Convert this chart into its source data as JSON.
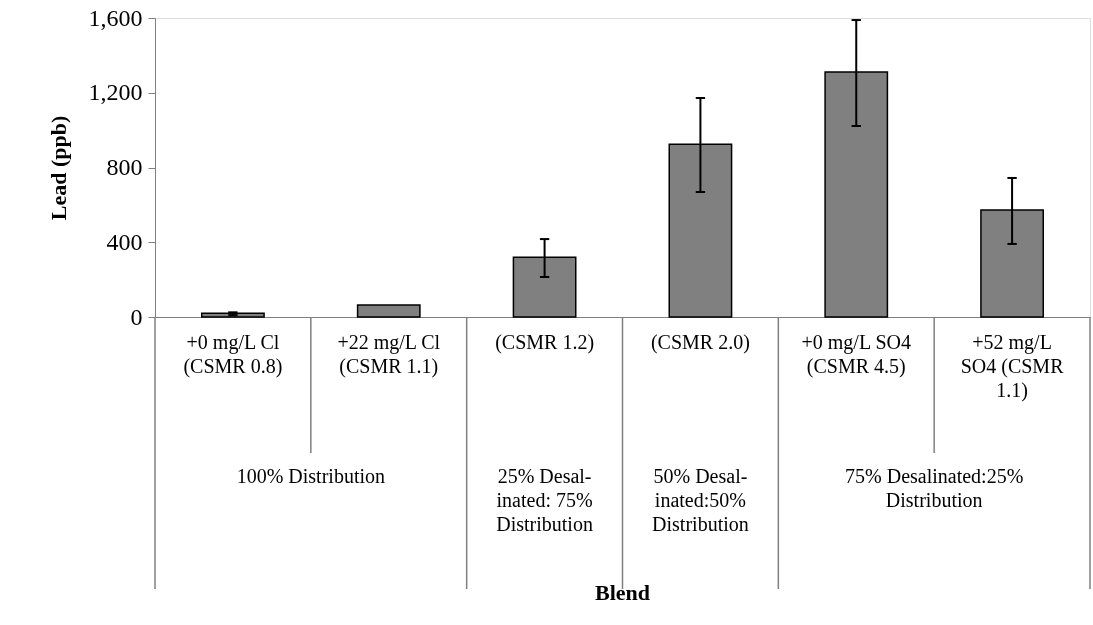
{
  "chart_data": {
    "type": "bar",
    "ylabel": "Lead (ppb)",
    "categories": [
      "+0 mg/L Cl\n(CSMR 0.8)",
      "+22 mg/L Cl\n(CSMR 1.1)",
      "(CSMR 1.2)",
      "(CSMR 2.0)",
      "+0 mg/L SO4\n(CSMR 4.5)",
      "+52 mg/L\nSO4 (CSMR\n1.1)"
    ],
    "values": [
      20,
      64,
      320,
      925,
      1311,
      572
    ],
    "errors": [
      [
        10,
        25
      ],
      null,
      [
        214,
        417
      ],
      [
        669,
        1172
      ],
      [
        1022,
        1589
      ],
      [
        391,
        744
      ]
    ],
    "color": "#808080",
    "ylim": [
      0,
      1600
    ],
    "yticks": [
      0,
      400,
      {
        "value": 800,
        "label": "800"
      },
      {
        "value": 1200,
        "label": "1,200"
      },
      {
        "value": 1600,
        "label": "1,600"
      }
    ],
    "grid": false,
    "annotations": [
      "100% Distribution",
      "25% Desal-\ninated: 75%\nDistribution",
      "50% Desal-\ninated:50%\nDistribution",
      "75% Desalinated:25%\nDistribution",
      "Blend"
    ]
  }
}
